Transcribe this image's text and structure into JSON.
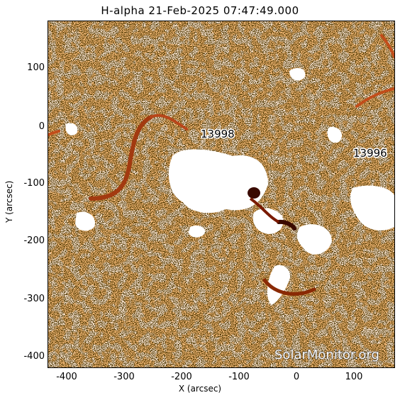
{
  "title": "H-alpha 21-Feb-2025 07:47:49.000",
  "x_axis": {
    "label": "X (arcsec)",
    "ticks": [
      "-400",
      "-300",
      "-200",
      "-100",
      "0",
      "100"
    ],
    "range": [
      -430,
      165
    ]
  },
  "y_axis": {
    "label": "Y (arcsec)",
    "ticks": [
      "100",
      "0",
      "-100",
      "-200",
      "-300",
      "-400"
    ],
    "range": [
      -420,
      180
    ]
  },
  "regions": [
    {
      "label": "13998"
    },
    {
      "label": "13996"
    }
  ],
  "watermark": "SolarMonitor.org",
  "colors": {
    "chromosphere": "#f08030",
    "bright": "#ffffff",
    "dark_filament": "#7a1a00",
    "granulation": "#1a0a00"
  }
}
